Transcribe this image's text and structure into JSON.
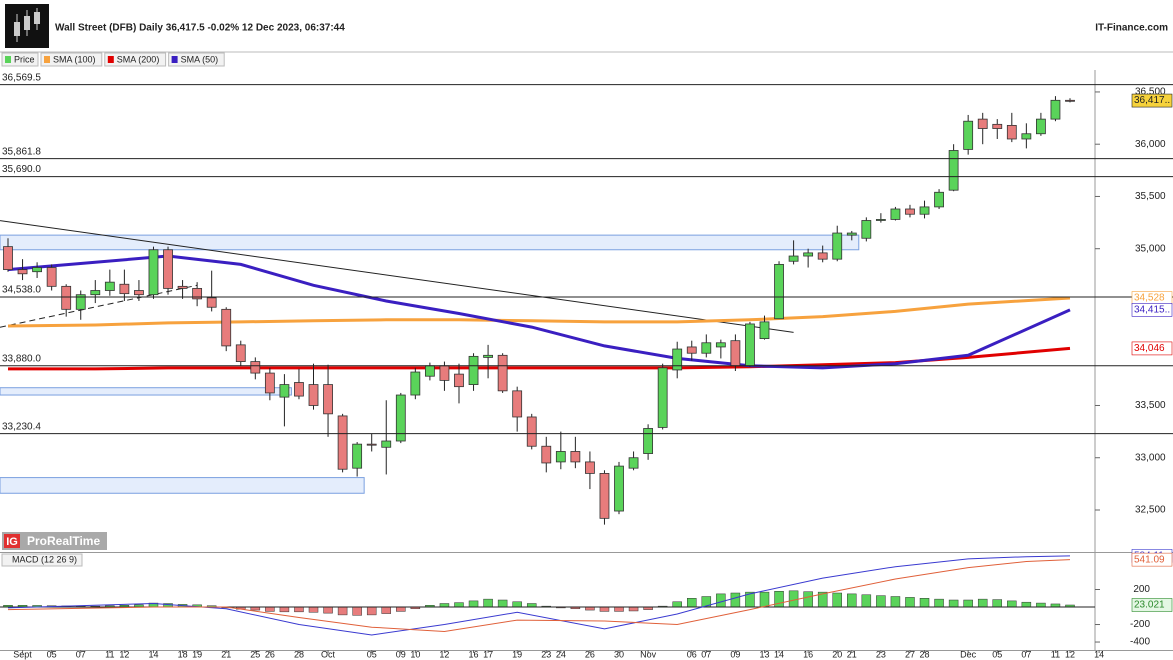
{
  "chart_data": {
    "type": "candlestick",
    "title": "Wall Street (DFB) Daily 36,417.5 -0.02% 12 Dec 2023, 06:37:44",
    "source": "IT-Finance.com",
    "price_name": "Price",
    "up_color": "#5ad35a",
    "down_color": "#e77c7c",
    "x": [
      "2023-08-31",
      "2023-09-01",
      "2023-09-04",
      "2023-09-05",
      "2023-09-06",
      "2023-09-07",
      "2023-09-08",
      "2023-09-11",
      "2023-09-12",
      "2023-09-13",
      "2023-09-14",
      "2023-09-15",
      "2023-09-18",
      "2023-09-19",
      "2023-09-20",
      "2023-09-21",
      "2023-09-22",
      "2023-09-25",
      "2023-09-26",
      "2023-09-27",
      "2023-09-28",
      "2023-09-29",
      "2023-10-02",
      "2023-10-03",
      "2023-10-04",
      "2023-10-05",
      "2023-10-06",
      "2023-10-09",
      "2023-10-10",
      "2023-10-11",
      "2023-10-12",
      "2023-10-13",
      "2023-10-16",
      "2023-10-17",
      "2023-10-18",
      "2023-10-19",
      "2023-10-20",
      "2023-10-23",
      "2023-10-24",
      "2023-10-25",
      "2023-10-26",
      "2023-10-27",
      "2023-10-30",
      "2023-10-31",
      "2023-11-01",
      "2023-11-02",
      "2023-11-03",
      "2023-11-06",
      "2023-11-07",
      "2023-11-08",
      "2023-11-09",
      "2023-11-10",
      "2023-11-13",
      "2023-11-14",
      "2023-11-15",
      "2023-11-16",
      "2023-11-17",
      "2023-11-20",
      "2023-11-21",
      "2023-11-22",
      "2023-11-23",
      "2023-11-24",
      "2023-11-27",
      "2023-11-28",
      "2023-11-29",
      "2023-11-30",
      "2023-12-01",
      "2023-12-04",
      "2023-12-05",
      "2023-12-06",
      "2023-12-07",
      "2023-12-08",
      "2023-12-11",
      "2023-12-12"
    ],
    "open": [
      35020,
      34800,
      34780,
      34820,
      34640,
      34420,
      34560,
      34600,
      34660,
      34600,
      34560,
      34990,
      34640,
      34620,
      34530,
      34420,
      34080,
      33920,
      33810,
      33580,
      33720,
      33700,
      33700,
      33400,
      32900,
      33130,
      33100,
      33160,
      33600,
      33780,
      33880,
      33800,
      33700,
      33960,
      33980,
      33640,
      33390,
      33110,
      32960,
      33060,
      32960,
      32850,
      32490,
      32900,
      33040,
      33290,
      33840,
      34060,
      34000,
      34060,
      34120,
      33880,
      34140,
      34330,
      34880,
      34930,
      34960,
      34900,
      35130,
      35100,
      35270,
      35280,
      35380,
      35330,
      35400,
      35560,
      35950,
      36240,
      36190,
      36180,
      36050,
      36100,
      36240,
      36420
    ],
    "high": [
      35100,
      34900,
      34870,
      34850,
      34660,
      34600,
      34700,
      34800,
      34800,
      34700,
      35020,
      35020,
      34700,
      34680,
      34790,
      34440,
      34120,
      33960,
      33860,
      33800,
      33850,
      33900,
      33890,
      33420,
      33150,
      33230,
      33550,
      33620,
      33860,
      33910,
      33920,
      33900,
      34000,
      34080,
      34000,
      33680,
      33420,
      33200,
      33250,
      33200,
      33060,
      32880,
      32960,
      33060,
      33320,
      33900,
      34110,
      34120,
      34180,
      34130,
      34180,
      34300,
      34360,
      34880,
      35080,
      35000,
      35030,
      35220,
      35170,
      35300,
      35340,
      35400,
      35420,
      35460,
      35570,
      36000,
      36280,
      36300,
      36240,
      36300,
      36200,
      36300,
      36460,
      36440
    ],
    "low": [
      34780,
      34700,
      34720,
      34600,
      34350,
      34320,
      34480,
      34550,
      34500,
      34500,
      34520,
      34560,
      34520,
      34450,
      34400,
      34020,
      33880,
      33750,
      33550,
      33300,
      33560,
      33460,
      33200,
      32860,
      32820,
      33060,
      32840,
      33140,
      33560,
      33740,
      33640,
      33520,
      33640,
      33760,
      33620,
      33250,
      33080,
      32860,
      32890,
      32900,
      32700,
      32360,
      32460,
      32880,
      32980,
      33270,
      33760,
      33930,
      33960,
      33950,
      33830,
      33870,
      34130,
      34330,
      34850,
      34820,
      34870,
      34880,
      35080,
      35070,
      35250,
      35270,
      35300,
      35290,
      35380,
      35550,
      35900,
      36000,
      36050,
      36020,
      35960,
      36080,
      36220,
      36400
    ],
    "close": [
      34800,
      34760,
      34820,
      34640,
      34420,
      34560,
      34600,
      34680,
      34570,
      34560,
      34990,
      34620,
      34620,
      34520,
      34440,
      34070,
      33920,
      33810,
      33620,
      33700,
      33590,
      33500,
      33420,
      32890,
      33130,
      33120,
      33160,
      33600,
      33820,
      33880,
      33740,
      33680,
      33970,
      33980,
      33640,
      33390,
      33110,
      32950,
      33060,
      32960,
      32850,
      32420,
      32920,
      33000,
      33280,
      33860,
      34040,
      34000,
      34100,
      34100,
      33880,
      34280,
      34300,
      34850,
      34930,
      34960,
      34900,
      35150,
      35150,
      35270,
      35280,
      35380,
      35330,
      35400,
      35540,
      35940,
      36220,
      36150,
      36150,
      36050,
      36100,
      36240,
      36420,
      36417.5
    ],
    "last_label": "36,417..",
    "ylim": [
      32098,
      36710
    ],
    "yticks": [
      {
        "value": 32500,
        "label": "32,500"
      },
      {
        "value": 33000,
        "label": "33,000"
      },
      {
        "value": 33500,
        "label": "33,500"
      },
      {
        "value": 35000,
        "label": "35,000"
      },
      {
        "value": 35500,
        "label": "35,500"
      },
      {
        "value": 36000,
        "label": "36,000"
      },
      {
        "value": 36500,
        "label": "36,500"
      }
    ],
    "xticks": [
      {
        "value": "2023-09-01",
        "label": "Sept"
      },
      {
        "value": "2023-09-05",
        "label": "05"
      },
      {
        "value": "2023-09-07",
        "label": "07"
      },
      {
        "value": "2023-09-11",
        "label": "11"
      },
      {
        "value": "2023-09-12",
        "label": "12"
      },
      {
        "value": "2023-09-14",
        "label": "14"
      },
      {
        "value": "2023-09-18",
        "label": "18"
      },
      {
        "value": "2023-09-19",
        "label": "19"
      },
      {
        "value": "2023-09-21",
        "label": "21"
      },
      {
        "value": "2023-09-25",
        "label": "25"
      },
      {
        "value": "2023-09-26",
        "label": "26"
      },
      {
        "value": "2023-09-28",
        "label": "28"
      },
      {
        "value": "2023-10-02",
        "label": "Oct"
      },
      {
        "value": "2023-10-05",
        "label": "05"
      },
      {
        "value": "2023-10-09",
        "label": "09"
      },
      {
        "value": "2023-10-10",
        "label": "10"
      },
      {
        "value": "2023-10-12",
        "label": "12"
      },
      {
        "value": "2023-10-16",
        "label": "16"
      },
      {
        "value": "2023-10-17",
        "label": "17"
      },
      {
        "value": "2023-10-19",
        "label": "19"
      },
      {
        "value": "2023-10-23",
        "label": "23"
      },
      {
        "value": "2023-10-24",
        "label": "24"
      },
      {
        "value": "2023-10-26",
        "label": "26"
      },
      {
        "value": "2023-10-30",
        "label": "30"
      },
      {
        "value": "2023-11-01",
        "label": "Nov"
      },
      {
        "value": "2023-11-06",
        "label": "06"
      },
      {
        "value": "2023-11-07",
        "label": "07"
      },
      {
        "value": "2023-11-09",
        "label": "09"
      },
      {
        "value": "2023-11-13",
        "label": "13"
      },
      {
        "value": "2023-11-14",
        "label": "14"
      },
      {
        "value": "2023-11-16",
        "label": "16"
      },
      {
        "value": "2023-11-20",
        "label": "20"
      },
      {
        "value": "2023-11-21",
        "label": "21"
      },
      {
        "value": "2023-11-23",
        "label": "23"
      },
      {
        "value": "2023-11-27",
        "label": "27"
      },
      {
        "value": "2023-11-28",
        "label": "28"
      },
      {
        "value": "2023-12-01",
        "label": "Dec"
      },
      {
        "value": "2023-12-05",
        "label": "05"
      },
      {
        "value": "2023-12-07",
        "label": "07"
      },
      {
        "value": "2023-12-11",
        "label": "11"
      },
      {
        "value": "2023-12-12",
        "label": "12"
      },
      {
        "value": "2023-12-14",
        "label": "14"
      }
    ],
    "levels": [
      {
        "value": 36569.5,
        "label": "36,569.5"
      },
      {
        "value": 35861.8,
        "label": "35,861.8"
      },
      {
        "value": 35690.0,
        "label": "35,690.0"
      },
      {
        "value": 34538.0,
        "label": "34,538.0"
      },
      {
        "value": 33880.0,
        "label": "33,880.0"
      },
      {
        "value": 33230.4,
        "label": "33,230.4"
      }
    ],
    "zones": [
      {
        "range": [
          34990,
          35130
        ],
        "end": "2023-11-21"
      },
      {
        "range": [
          33600,
          33670
        ],
        "end": "2023-09-27"
      },
      {
        "range": [
          32660,
          32810
        ],
        "end": "2023-10-04"
      }
    ],
    "trendlines": [
      {
        "x": [
          "2023-08-31",
          "2023-11-15"
        ],
        "values": [
          35260,
          34200
        ],
        "dashed": false
      },
      {
        "x": [
          "2023-08-31",
          "2023-09-19"
        ],
        "values": [
          34240,
          34650
        ],
        "dashed": true
      }
    ],
    "series": [
      {
        "name": "SMA (100)",
        "color": "#f7a23e",
        "badge": "34,528",
        "x": [
          "2023-08-31",
          "2023-09-08",
          "2023-09-15",
          "2023-09-22",
          "2023-09-29",
          "2023-10-06",
          "2023-10-13",
          "2023-10-20",
          "2023-10-27",
          "2023-11-03",
          "2023-11-10",
          "2023-11-17",
          "2023-11-24",
          "2023-12-01",
          "2023-12-12"
        ],
        "values": [
          34260,
          34270,
          34290,
          34300,
          34310,
          34320,
          34320,
          34310,
          34300,
          34300,
          34320,
          34350,
          34400,
          34470,
          34528
        ]
      },
      {
        "name": "SMA (200)",
        "color": "#e00000",
        "badge": "34,046",
        "x": [
          "2023-08-31",
          "2023-09-08",
          "2023-09-15",
          "2023-09-22",
          "2023-09-29",
          "2023-10-06",
          "2023-10-13",
          "2023-10-20",
          "2023-10-27",
          "2023-11-03",
          "2023-11-10",
          "2023-11-17",
          "2023-11-24",
          "2023-12-01",
          "2023-12-12"
        ],
        "values": [
          33850,
          33850,
          33860,
          33860,
          33860,
          33860,
          33860,
          33860,
          33860,
          33860,
          33870,
          33890,
          33910,
          33960,
          34046
        ]
      },
      {
        "name": "SMA (50)",
        "color": "#3a1fc1",
        "badge": "34,415..",
        "x": [
          "2023-08-31",
          "2023-09-08",
          "2023-09-15",
          "2023-09-22",
          "2023-09-29",
          "2023-10-06",
          "2023-10-13",
          "2023-10-20",
          "2023-10-27",
          "2023-11-03",
          "2023-11-10",
          "2023-11-17",
          "2023-11-24",
          "2023-12-01",
          "2023-12-12"
        ],
        "values": [
          34800,
          34870,
          34930,
          34850,
          34650,
          34500,
          34380,
          34250,
          34070,
          33950,
          33880,
          33860,
          33900,
          33980,
          34415
        ]
      }
    ],
    "watermark": {
      "brand": "IG",
      "name": "ProRealTime"
    },
    "macd": {
      "title": "MACD (12 26 9)",
      "histogram": [
        20,
        20,
        18,
        15,
        12,
        10,
        10,
        15,
        20,
        25,
        45,
        40,
        30,
        25,
        15,
        -10,
        -25,
        -35,
        -50,
        -55,
        -55,
        -60,
        -70,
        -90,
        -95,
        -90,
        -75,
        -50,
        -20,
        20,
        40,
        50,
        70,
        90,
        80,
        60,
        40,
        10,
        -10,
        -20,
        -35,
        -50,
        -50,
        -45,
        -30,
        10,
        60,
        100,
        120,
        150,
        160,
        170,
        170,
        180,
        185,
        175,
        170,
        160,
        150,
        140,
        130,
        120,
        110,
        100,
        90,
        80,
        80,
        90,
        85,
        70,
        55,
        45,
        35,
        23.021
      ],
      "ylim": [
        -491,
        617
      ],
      "yticks": [
        -400,
        -200,
        200
      ],
      "series": [
        {
          "color": "#3a3ad0",
          "x": [
            "2023-08-31",
            "2023-09-14",
            "2023-09-21",
            "2023-09-28",
            "2023-10-05",
            "2023-10-12",
            "2023-10-19",
            "2023-10-27",
            "2023-11-03",
            "2023-11-10",
            "2023-11-17",
            "2023-11-24",
            "2023-12-01",
            "2023-12-07",
            "2023-12-12"
          ],
          "values": [
            -10,
            40,
            -20,
            -200,
            -320,
            -200,
            -60,
            -250,
            -80,
            150,
            330,
            460,
            550,
            575,
            584.11
          ]
        },
        {
          "color": "#e0603a",
          "x": [
            "2023-08-31",
            "2023-09-14",
            "2023-09-21",
            "2023-09-28",
            "2023-10-05",
            "2023-10-12",
            "2023-10-19",
            "2023-10-27",
            "2023-11-03",
            "2023-11-10",
            "2023-11-17",
            "2023-11-24",
            "2023-12-01",
            "2023-12-07",
            "2023-12-12"
          ],
          "values": [
            -30,
            0,
            0,
            -120,
            -230,
            -280,
            -150,
            -160,
            -200,
            -30,
            150,
            320,
            450,
            520,
            541.09
          ]
        }
      ]
    }
  }
}
